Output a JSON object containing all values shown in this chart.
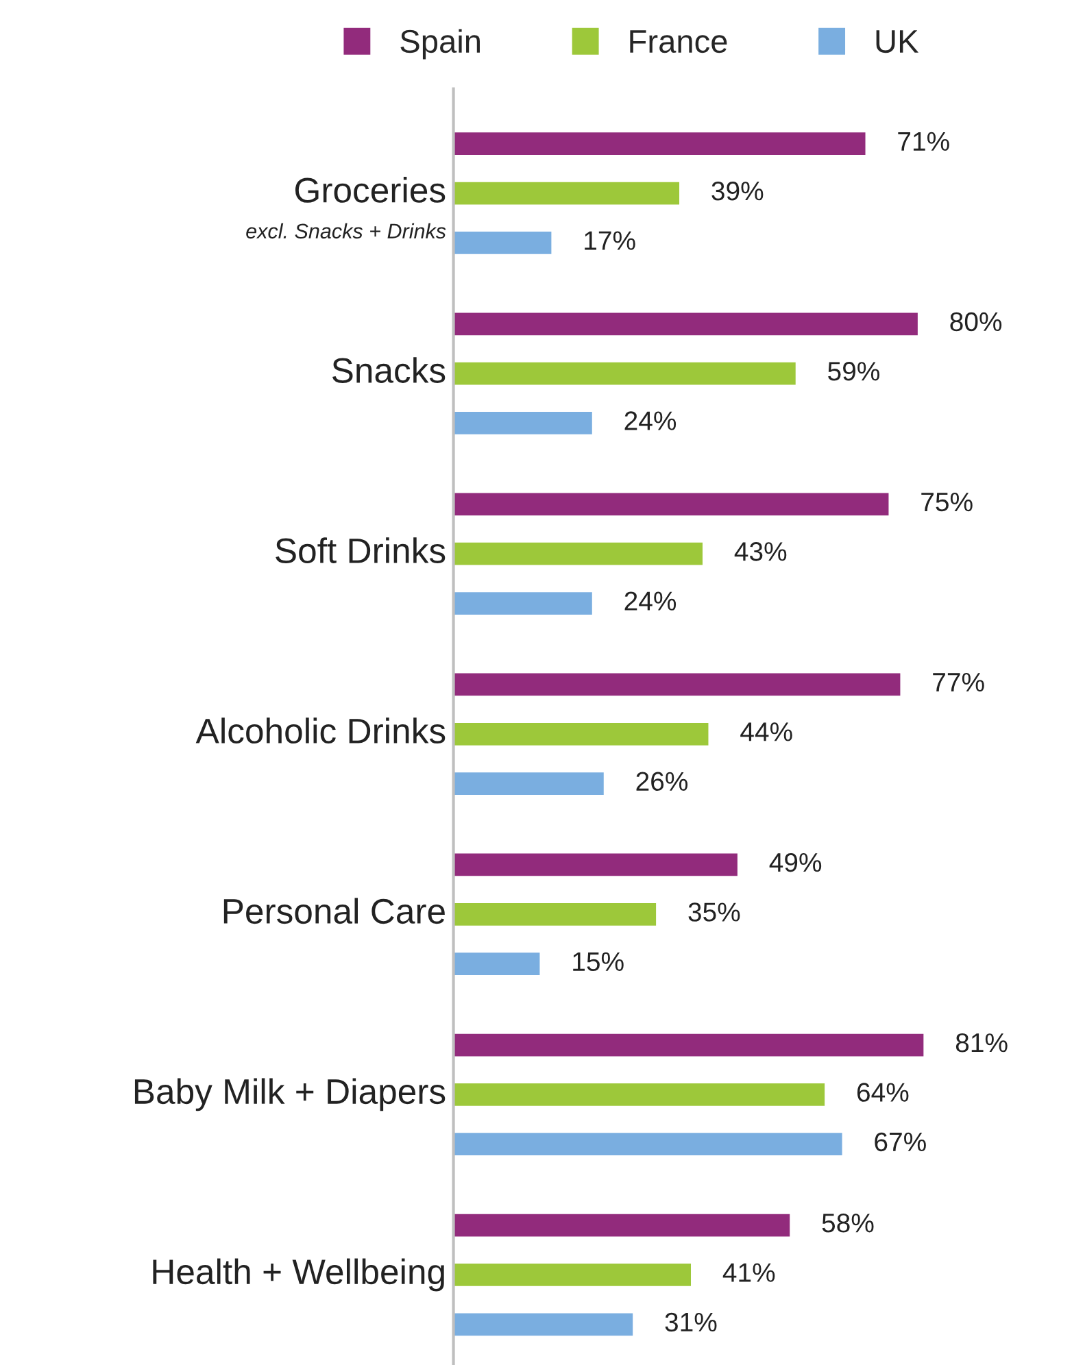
{
  "chart_data": {
    "type": "bar",
    "orientation": "horizontal",
    "categories": [
      "Groceries\nexcl. Snacks + Drinks",
      "Snacks",
      "Soft Drinks",
      "Alcoholic Drinks",
      "Personal Care",
      "Baby Milk + Diapers",
      "Health + Wellbeing"
    ],
    "series": [
      {
        "name": "Spain",
        "color": "#922b7c",
        "values": [
          71,
          80,
          75,
          77,
          49,
          81,
          58
        ],
        "value_labels": [
          "71%",
          "80%",
          "75%",
          "77%",
          "49%",
          "81%",
          "58%"
        ]
      },
      {
        "name": "France",
        "color": "#9dc83a",
        "values": [
          39,
          59,
          43,
          44,
          35,
          64,
          41
        ],
        "value_labels": [
          "39%",
          "59%",
          "43%",
          "44%",
          "35%",
          "64%",
          "41%"
        ]
      },
      {
        "name": "UK",
        "color": "#7aaee0",
        "values": [
          17,
          24,
          24,
          26,
          15,
          67,
          31
        ],
        "value_labels": [
          "17%",
          "24%",
          "24%",
          "26%",
          "15%",
          "67%",
          "31%"
        ]
      }
    ],
    "tick_labels": "y",
    "legend": "top",
    "grid": false
  }
}
